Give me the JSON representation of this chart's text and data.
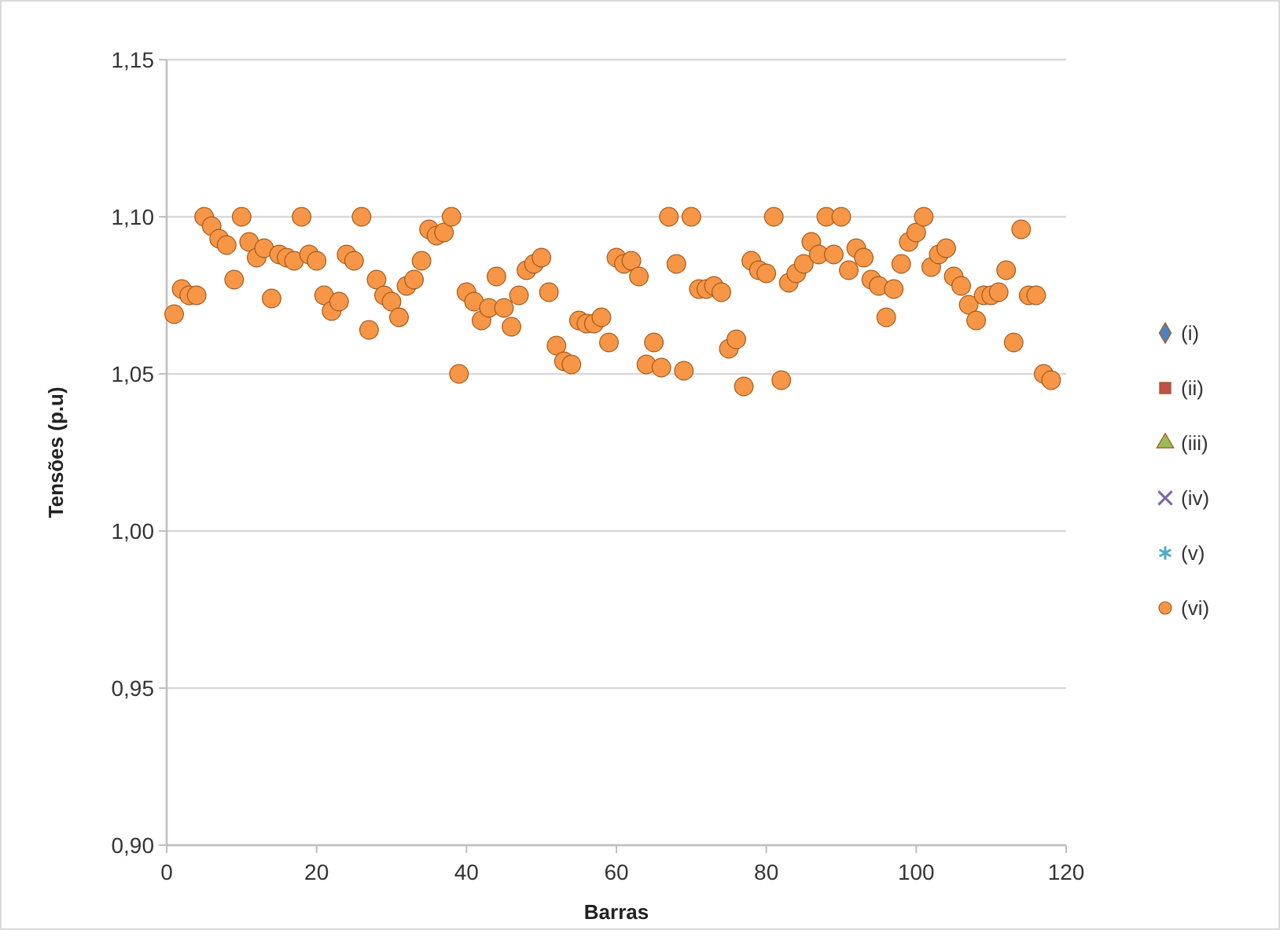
{
  "chart_data": {
    "type": "scatter",
    "xlabel": "Barras",
    "ylabel": "Tensões (p.u)",
    "xlim": [
      0,
      120
    ],
    "xticks": [
      0,
      20,
      40,
      60,
      80,
      100,
      120
    ],
    "ylim": [
      0.9,
      1.15
    ],
    "yticks": [
      {
        "value": 0.9,
        "label": "0,90"
      },
      {
        "value": 0.95,
        "label": "0,95"
      },
      {
        "value": 1.0,
        "label": "1,00"
      },
      {
        "value": 1.05,
        "label": "1,05"
      },
      {
        "value": 1.1,
        "label": "1,10"
      },
      {
        "value": 1.15,
        "label": "1,15"
      }
    ],
    "grid": "y",
    "legend": "right",
    "x": [
      1,
      2,
      3,
      4,
      5,
      6,
      7,
      8,
      9,
      10,
      11,
      12,
      13,
      14,
      15,
      16,
      17,
      18,
      19,
      20,
      21,
      22,
      23,
      24,
      25,
      26,
      27,
      28,
      29,
      30,
      31,
      32,
      33,
      34,
      35,
      36,
      37,
      38,
      39,
      40,
      41,
      42,
      43,
      44,
      45,
      46,
      47,
      48,
      49,
      50,
      51,
      52,
      53,
      54,
      55,
      56,
      57,
      58,
      59,
      60,
      61,
      62,
      63,
      64,
      65,
      66,
      67,
      68,
      69,
      70,
      71,
      72,
      73,
      74,
      75,
      76,
      77,
      78,
      79,
      80,
      81,
      82,
      83,
      84,
      85,
      86,
      87,
      88,
      89,
      90,
      91,
      92,
      93,
      94,
      95,
      96,
      97,
      98,
      99,
      100,
      101,
      102,
      103,
      104,
      105,
      106,
      107,
      108,
      109,
      110,
      111,
      112,
      113,
      114,
      115,
      116,
      117,
      118
    ],
    "series": [
      {
        "name": "(i)",
        "color": "#4f81bd",
        "marker": "diamond",
        "values": [
          null,
          null,
          null,
          null,
          null,
          null,
          null,
          null,
          null,
          null,
          null,
          null,
          null,
          null,
          null,
          null,
          null,
          null,
          null,
          null,
          null,
          null,
          null,
          null,
          null,
          null,
          null,
          null,
          null,
          null,
          null,
          null,
          null,
          null,
          null,
          null,
          null,
          null,
          null,
          null,
          null,
          null,
          null,
          null,
          null,
          null,
          null,
          null,
          null,
          null,
          null,
          null,
          null,
          null,
          null,
          null,
          null,
          null,
          null,
          null,
          null,
          null,
          null,
          null,
          null,
          null,
          null,
          null,
          null,
          null,
          null,
          null,
          null,
          null,
          null,
          null,
          null,
          null,
          null,
          null,
          null,
          null,
          null,
          null,
          null,
          null,
          null,
          null,
          null,
          null,
          null,
          null,
          null,
          null,
          null,
          null,
          null,
          null,
          null,
          null,
          null,
          null,
          null,
          null,
          null,
          null,
          null,
          null,
          null,
          null,
          null,
          null,
          null,
          null,
          null,
          null,
          null,
          null
        ]
      },
      {
        "name": "(ii)",
        "color": "#c0504d",
        "marker": "square",
        "values": [
          null,
          null,
          null,
          null,
          null,
          null,
          null,
          null,
          null,
          null,
          null,
          null,
          null,
          null,
          null,
          null,
          null,
          null,
          null,
          null,
          null,
          null,
          null,
          null,
          null,
          null,
          null,
          null,
          null,
          null,
          null,
          null,
          null,
          null,
          null,
          null,
          null,
          null,
          null,
          null,
          null,
          null,
          null,
          null,
          null,
          null,
          null,
          null,
          null,
          null,
          null,
          null,
          null,
          null,
          null,
          null,
          null,
          null,
          null,
          null,
          null,
          null,
          null,
          null,
          null,
          null,
          null,
          null,
          null,
          null,
          null,
          null,
          null,
          null,
          null,
          null,
          null,
          null,
          null,
          null,
          null,
          null,
          null,
          null,
          null,
          null,
          null,
          null,
          null,
          null,
          null,
          null,
          null,
          null,
          null,
          null,
          null,
          null,
          null,
          null,
          null,
          null,
          null,
          null,
          null,
          null,
          null,
          null,
          null,
          null,
          null,
          null,
          null,
          null,
          null,
          null,
          null,
          null
        ]
      },
      {
        "name": "(iii)",
        "color": "#9bbb59",
        "marker": "triangle",
        "values": [
          null,
          null,
          null,
          null,
          null,
          null,
          null,
          null,
          null,
          null,
          null,
          null,
          null,
          null,
          null,
          null,
          null,
          null,
          null,
          null,
          null,
          null,
          null,
          null,
          null,
          null,
          null,
          null,
          null,
          null,
          null,
          null,
          null,
          null,
          null,
          null,
          null,
          null,
          null,
          null,
          null,
          null,
          null,
          null,
          null,
          null,
          null,
          null,
          null,
          null,
          null,
          null,
          null,
          null,
          null,
          null,
          null,
          null,
          null,
          null,
          null,
          null,
          null,
          null,
          null,
          null,
          null,
          null,
          null,
          null,
          null,
          null,
          null,
          null,
          null,
          null,
          null,
          null,
          null,
          null,
          null,
          null,
          null,
          null,
          null,
          null,
          null,
          null,
          null,
          null,
          null,
          null,
          null,
          null,
          null,
          null,
          null,
          null,
          null,
          null,
          null,
          null,
          null,
          null,
          null,
          null,
          null,
          null,
          null,
          null,
          null,
          null,
          null,
          null,
          null,
          null,
          null,
          null
        ]
      },
      {
        "name": "(iv)",
        "color": "#8064a2",
        "marker": "cross",
        "values": [
          null,
          null,
          null,
          null,
          null,
          null,
          null,
          null,
          null,
          null,
          null,
          null,
          null,
          null,
          null,
          null,
          null,
          null,
          null,
          null,
          null,
          null,
          null,
          null,
          null,
          null,
          null,
          null,
          null,
          null,
          null,
          null,
          null,
          null,
          null,
          null,
          null,
          null,
          null,
          null,
          null,
          null,
          null,
          null,
          null,
          null,
          null,
          null,
          null,
          null,
          null,
          null,
          null,
          null,
          null,
          null,
          null,
          null,
          null,
          null,
          null,
          null,
          null,
          null,
          null,
          null,
          null,
          null,
          null,
          null,
          null,
          null,
          null,
          null,
          null,
          null,
          null,
          null,
          null,
          null,
          null,
          null,
          null,
          null,
          null,
          null,
          null,
          null,
          null,
          null,
          null,
          null,
          null,
          null,
          null,
          null,
          null,
          null,
          null,
          null,
          null,
          null,
          null,
          null,
          null,
          null,
          null,
          null,
          null,
          null,
          null,
          null,
          null,
          null,
          null,
          null,
          null,
          null
        ]
      },
      {
        "name": "(v)",
        "color": "#4bacc6",
        "marker": "star",
        "values": [
          null,
          null,
          null,
          null,
          null,
          null,
          null,
          null,
          null,
          null,
          null,
          null,
          null,
          null,
          null,
          null,
          null,
          null,
          null,
          null,
          null,
          null,
          null,
          null,
          null,
          null,
          null,
          null,
          null,
          null,
          null,
          null,
          null,
          null,
          null,
          null,
          null,
          null,
          null,
          null,
          null,
          null,
          null,
          null,
          null,
          null,
          null,
          null,
          null,
          null,
          null,
          null,
          null,
          null,
          null,
          null,
          null,
          null,
          null,
          null,
          null,
          null,
          null,
          null,
          null,
          null,
          null,
          null,
          null,
          null,
          null,
          null,
          null,
          null,
          null,
          null,
          null,
          null,
          null,
          null,
          null,
          null,
          null,
          null,
          null,
          null,
          null,
          null,
          null,
          null,
          null,
          null,
          null,
          null,
          null,
          null,
          null,
          null,
          null,
          null,
          null,
          null,
          null,
          null,
          null,
          null,
          null,
          null,
          null,
          null,
          null,
          null,
          null,
          null,
          null,
          null,
          null,
          null
        ]
      },
      {
        "name": "(vi)",
        "color": "#f79646",
        "marker": "circle",
        "values": [
          1.069,
          1.077,
          1.075,
          1.075,
          1.1,
          1.097,
          1.093,
          1.091,
          1.08,
          1.1,
          1.092,
          1.087,
          1.09,
          1.074,
          1.088,
          1.087,
          1.086,
          1.1,
          1.088,
          1.086,
          1.075,
          1.07,
          1.073,
          1.088,
          1.086,
          1.1,
          1.064,
          1.08,
          1.075,
          1.073,
          1.068,
          1.078,
          1.08,
          1.086,
          1.096,
          1.094,
          1.095,
          1.1,
          1.05,
          1.076,
          1.073,
          1.067,
          1.071,
          1.081,
          1.071,
          1.065,
          1.075,
          1.083,
          1.085,
          1.087,
          1.076,
          1.059,
          1.054,
          1.053,
          1.067,
          1.066,
          1.066,
          1.068,
          1.06,
          1.087,
          1.085,
          1.086,
          1.081,
          1.053,
          1.06,
          1.052,
          1.1,
          1.085,
          1.051,
          1.1,
          1.077,
          1.077,
          1.078,
          1.076,
          1.058,
          1.061,
          1.046,
          1.086,
          1.083,
          1.082,
          1.1,
          1.048,
          1.079,
          1.082,
          1.085,
          1.092,
          1.088,
          1.1,
          1.088,
          1.1,
          1.083,
          1.09,
          1.087,
          1.08,
          1.078,
          1.068,
          1.077,
          1.085,
          1.092,
          1.095,
          1.1,
          1.084,
          1.088,
          1.09,
          1.081,
          1.078,
          1.072,
          1.067,
          1.075,
          1.075,
          1.076,
          1.083,
          1.06,
          1.096,
          1.075,
          1.075,
          1.05,
          1.048
        ]
      }
    ]
  }
}
